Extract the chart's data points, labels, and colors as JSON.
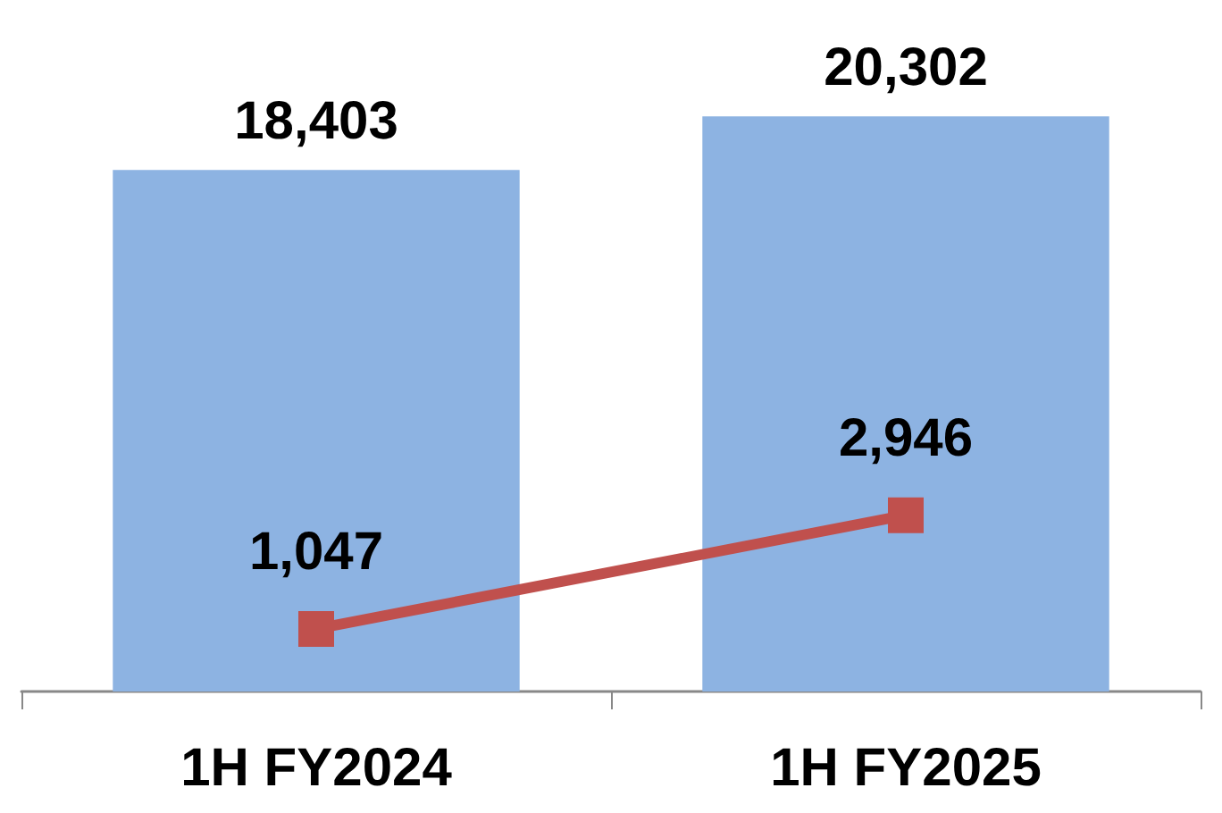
{
  "chart_data": {
    "type": "bar",
    "categories": [
      "1H FY2024",
      "1H FY2025"
    ],
    "series": [
      {
        "color": "#8db3e2",
        "values": [
          18403,
          20302
        ],
        "value_labels": [
          "18,403",
          "20,302"
        ]
      },
      {
        "type": "line",
        "axis": "y2",
        "color": "#c0504d",
        "values": [
          1047,
          2946
        ],
        "value_labels": [
          "1,047",
          "2,946"
        ]
      }
    ],
    "marker": "square"
  }
}
